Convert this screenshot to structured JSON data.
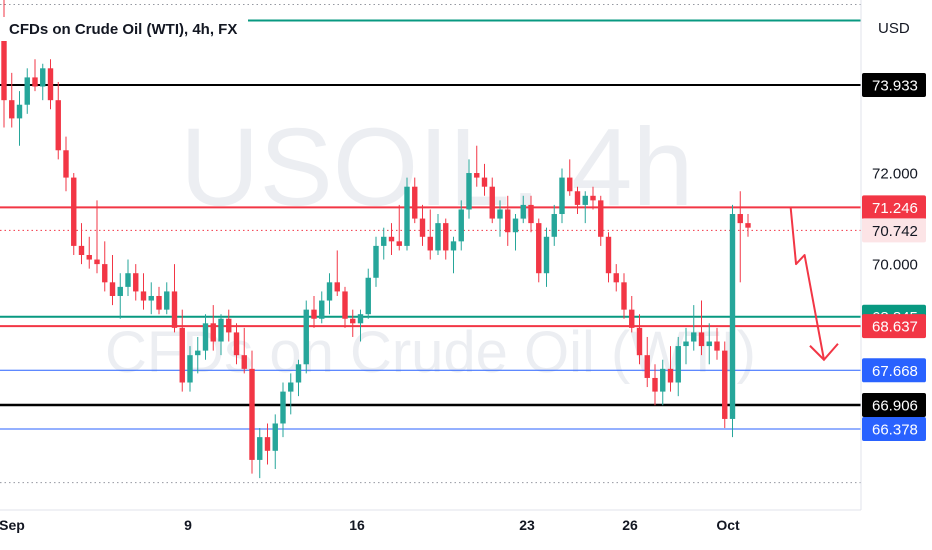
{
  "header": {
    "title": "CFDs on Crude Oil (WTI), 4h, FX"
  },
  "watermark": {
    "symbol": "USOIL, 4h",
    "description": "CFDs on Crude Oil (WTI)"
  },
  "currency_button": "USD",
  "colors": {
    "up": "#26a69a",
    "down": "#f23645",
    "black": "#000000",
    "blue": "#2962ff",
    "red_line": "#f23645",
    "teal_line": "#089981"
  },
  "chart_data": {
    "type": "candlestick",
    "title": "CFDs on Crude Oil (WTI), 4h, FX",
    "ylim": [
      64.6,
      75.8
    ],
    "y_ticks": [
      70.0,
      72.0
    ],
    "x_labels": [
      "Sep",
      "9",
      "16",
      "23",
      "26",
      "Oct"
    ],
    "horizontal_levels": [
      {
        "value": 75.35,
        "style": "solid",
        "color": "#089981",
        "label": ""
      },
      {
        "value": 73.933,
        "style": "solid",
        "color": "#000000",
        "label": "73.933"
      },
      {
        "value": 71.246,
        "style": "solid",
        "color": "#f23645",
        "label": "71.246"
      },
      {
        "value": 70.742,
        "style": "dotted",
        "color": "#f23645",
        "label": "70.742"
      },
      {
        "value": 68.845,
        "style": "solid",
        "color": "#089981",
        "label": "68.845"
      },
      {
        "value": 68.637,
        "style": "solid",
        "color": "#f23645",
        "label": "68.637"
      },
      {
        "value": 67.668,
        "style": "solid",
        "color": "#2962ff",
        "label": "67.668"
      },
      {
        "value": 66.906,
        "style": "solid",
        "color": "#000000",
        "label": "66.906"
      },
      {
        "value": 66.378,
        "style": "solid",
        "color": "#2962ff",
        "label": "66.378"
      },
      {
        "value": 75.7,
        "style": "dotted",
        "color": "#9598a1",
        "label": ""
      },
      {
        "value": 65.2,
        "style": "dotted",
        "color": "#9598a1",
        "label": ""
      }
    ],
    "price_tags": [
      {
        "value": 73.933,
        "text": "73.933",
        "bg": "#000000",
        "fg": "#ffffff"
      },
      {
        "value": 72.0,
        "text": "72.000",
        "bg": "",
        "fg": "#131722"
      },
      {
        "value": 71.246,
        "text": "71.246",
        "bg": "#f23645",
        "fg": "#ffffff"
      },
      {
        "value": 70.742,
        "text": "70.742",
        "bg": "#fce4e6",
        "fg": "#131722"
      },
      {
        "value": 70.0,
        "text": "70.000",
        "bg": "",
        "fg": "#131722"
      },
      {
        "value": 68.845,
        "text": "68.845",
        "bg": "#089981",
        "fg": "#ffffff"
      },
      {
        "value": 68.637,
        "text": "68.637",
        "bg": "#f23645",
        "fg": "#ffffff"
      },
      {
        "value": 67.668,
        "text": "67.668",
        "bg": "#2962ff",
        "fg": "#ffffff"
      },
      {
        "value": 66.906,
        "text": "66.906",
        "bg": "#000000",
        "fg": "#ffffff"
      },
      {
        "value": 66.378,
        "text": "66.378",
        "bg": "#2962ff",
        "fg": "#ffffff"
      }
    ],
    "candles": [
      [
        75.4,
        75.8,
        73.0,
        73.6
      ],
      [
        73.6,
        74.2,
        73.0,
        73.2
      ],
      [
        73.2,
        73.8,
        72.6,
        73.5
      ],
      [
        73.5,
        74.3,
        73.3,
        74.1
      ],
      [
        74.1,
        74.5,
        73.8,
        73.9
      ],
      [
        73.9,
        74.4,
        73.6,
        74.3
      ],
      [
        74.3,
        74.5,
        73.4,
        73.6
      ],
      [
        73.6,
        74.0,
        72.3,
        72.5
      ],
      [
        72.5,
        72.8,
        71.6,
        71.9
      ],
      [
        71.9,
        72.0,
        70.2,
        70.4
      ],
      [
        70.4,
        70.9,
        70.0,
        70.2
      ],
      [
        70.2,
        70.6,
        69.9,
        70.1
      ],
      [
        70.1,
        71.4,
        69.8,
        70.0
      ],
      [
        70.0,
        70.5,
        69.4,
        69.6
      ],
      [
        69.6,
        70.2,
        69.1,
        69.3
      ],
      [
        69.3,
        69.8,
        68.8,
        69.5
      ],
      [
        69.5,
        70.1,
        69.3,
        69.8
      ],
      [
        69.8,
        70.0,
        69.2,
        69.4
      ],
      [
        69.4,
        69.8,
        69.0,
        69.2
      ],
      [
        69.2,
        69.6,
        68.9,
        69.3
      ],
      [
        69.3,
        69.5,
        68.9,
        69.0
      ],
      [
        69.0,
        69.6,
        68.9,
        69.4
      ],
      [
        69.4,
        70.0,
        68.5,
        68.6
      ],
      [
        68.6,
        69.0,
        67.2,
        67.4
      ],
      [
        67.4,
        68.2,
        67.2,
        68.0
      ],
      [
        68.0,
        68.4,
        67.6,
        68.1
      ],
      [
        68.1,
        68.9,
        67.9,
        68.7
      ],
      [
        68.7,
        69.1,
        68.1,
        68.3
      ],
      [
        68.3,
        68.9,
        68.0,
        68.8
      ],
      [
        68.8,
        69.0,
        68.3,
        68.5
      ],
      [
        68.5,
        68.7,
        67.8,
        68.0
      ],
      [
        68.0,
        68.6,
        67.6,
        67.7
      ],
      [
        67.7,
        68.1,
        65.4,
        65.7
      ],
      [
        65.7,
        66.4,
        65.3,
        66.2
      ],
      [
        66.2,
        66.5,
        65.6,
        65.9
      ],
      [
        65.9,
        66.7,
        65.5,
        66.5
      ],
      [
        66.5,
        67.4,
        66.2,
        67.2
      ],
      [
        67.2,
        67.6,
        66.7,
        67.4
      ],
      [
        67.4,
        67.9,
        67.1,
        67.8
      ],
      [
        67.8,
        69.2,
        67.6,
        69.0
      ],
      [
        69.0,
        69.3,
        68.6,
        68.8
      ],
      [
        68.8,
        69.4,
        68.7,
        69.2
      ],
      [
        69.2,
        69.8,
        68.9,
        69.6
      ],
      [
        69.6,
        70.3,
        69.3,
        69.4
      ],
      [
        69.4,
        69.5,
        68.6,
        68.8
      ],
      [
        68.8,
        69.0,
        68.4,
        68.7
      ],
      [
        68.7,
        69.0,
        68.3,
        68.9
      ],
      [
        68.9,
        69.9,
        68.8,
        69.7
      ],
      [
        69.7,
        70.6,
        69.5,
        70.4
      ],
      [
        70.4,
        70.8,
        70.1,
        70.6
      ],
      [
        70.6,
        70.9,
        70.2,
        70.5
      ],
      [
        70.5,
        71.3,
        70.3,
        70.4
      ],
      [
        70.4,
        71.9,
        70.3,
        71.7
      ],
      [
        71.7,
        71.9,
        70.9,
        71.0
      ],
      [
        71.0,
        71.3,
        70.4,
        70.6
      ],
      [
        70.6,
        71.2,
        70.1,
        70.3
      ],
      [
        70.3,
        71.1,
        70.2,
        70.9
      ],
      [
        70.9,
        71.0,
        70.1,
        70.3
      ],
      [
        70.3,
        70.6,
        69.8,
        70.5
      ],
      [
        70.5,
        71.4,
        70.3,
        71.2
      ],
      [
        71.2,
        72.3,
        71.0,
        72.0
      ],
      [
        72.0,
        72.6,
        71.7,
        71.9
      ],
      [
        71.9,
        72.2,
        71.5,
        71.7
      ],
      [
        71.7,
        71.9,
        70.9,
        71.0
      ],
      [
        71.0,
        71.4,
        70.6,
        71.2
      ],
      [
        71.2,
        71.5,
        70.4,
        70.7
      ],
      [
        70.7,
        71.1,
        70.3,
        71.0
      ],
      [
        71.0,
        71.5,
        70.9,
        71.3
      ],
      [
        71.3,
        71.5,
        70.7,
        70.9
      ],
      [
        70.9,
        71.0,
        69.6,
        69.8
      ],
      [
        69.8,
        70.8,
        69.5,
        70.6
      ],
      [
        70.6,
        71.3,
        70.4,
        71.1
      ],
      [
        71.1,
        72.1,
        70.9,
        71.9
      ],
      [
        71.9,
        72.3,
        71.5,
        71.6
      ],
      [
        71.6,
        71.7,
        71.1,
        71.3
      ],
      [
        71.3,
        71.6,
        70.9,
        71.5
      ],
      [
        71.5,
        71.7,
        71.2,
        71.4
      ],
      [
        71.4,
        71.5,
        70.4,
        70.6
      ],
      [
        70.6,
        70.7,
        69.6,
        69.8
      ],
      [
        69.8,
        70.0,
        69.4,
        69.6
      ],
      [
        69.6,
        69.8,
        68.8,
        69.0
      ],
      [
        69.0,
        69.3,
        68.5,
        68.6
      ],
      [
        68.6,
        68.9,
        67.8,
        68.0
      ],
      [
        68.0,
        68.4,
        67.3,
        67.5
      ],
      [
        67.5,
        67.8,
        66.9,
        67.2
      ],
      [
        67.2,
        67.9,
        66.9,
        67.7
      ],
      [
        67.7,
        68.2,
        67.2,
        67.4
      ],
      [
        67.4,
        68.4,
        67.1,
        68.2
      ],
      [
        68.2,
        68.6,
        67.8,
        68.3
      ],
      [
        68.3,
        69.1,
        68.1,
        68.5
      ],
      [
        68.5,
        69.2,
        68.0,
        68.2
      ],
      [
        68.2,
        68.7,
        67.8,
        68.3
      ],
      [
        68.3,
        68.6,
        67.9,
        68.1
      ],
      [
        68.1,
        68.3,
        66.4,
        66.6
      ],
      [
        66.6,
        71.3,
        66.2,
        71.1
      ],
      [
        71.1,
        71.6,
        69.6,
        70.9
      ],
      [
        70.9,
        71.1,
        70.6,
        70.8
      ]
    ],
    "arrow_path_values": [
      [
        101.5,
        71.25
      ],
      [
        102.2,
        70.0
      ],
      [
        103.3,
        70.2
      ],
      [
        105.8,
        67.9
      ]
    ]
  }
}
